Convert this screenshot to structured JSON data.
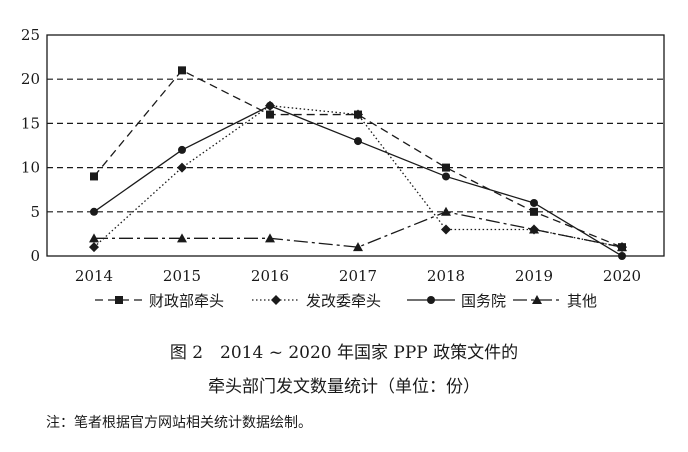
{
  "chart_data": {
    "type": "line",
    "x": [
      "2014",
      "2015",
      "2016",
      "2017",
      "2018",
      "2019",
      "2020"
    ],
    "ylim": [
      0,
      25
    ],
    "yticks": [
      "0",
      "5",
      "10",
      "15",
      "20",
      "25"
    ],
    "grid": "horizontal-dashed",
    "legend_position": "bottom",
    "series": [
      {
        "name": "财政部牵头",
        "marker": "square",
        "dash": "8,5",
        "values": [
          9,
          21,
          16,
          16,
          10,
          5,
          1
        ]
      },
      {
        "name": "发改委牵头",
        "marker": "diamond",
        "dash": "1.5,2.5",
        "values": [
          1,
          10,
          17,
          16,
          3,
          3,
          1
        ]
      },
      {
        "name": "国务院",
        "marker": "circle",
        "dash": "none",
        "values": [
          5,
          12,
          17,
          13,
          9,
          6,
          0
        ]
      },
      {
        "name": "其他",
        "marker": "triangle",
        "dash": "14,4,3,4",
        "values": [
          2,
          2,
          2,
          1,
          5,
          3,
          1
        ]
      }
    ]
  },
  "caption": {
    "line1": "图 2　2014 ~ 2020 年国家 PPP 政策文件的",
    "line2": "牵头部门发文数量统计（单位：份）"
  },
  "note": "注：笔者根据官方网站相关统计数据绘制。"
}
